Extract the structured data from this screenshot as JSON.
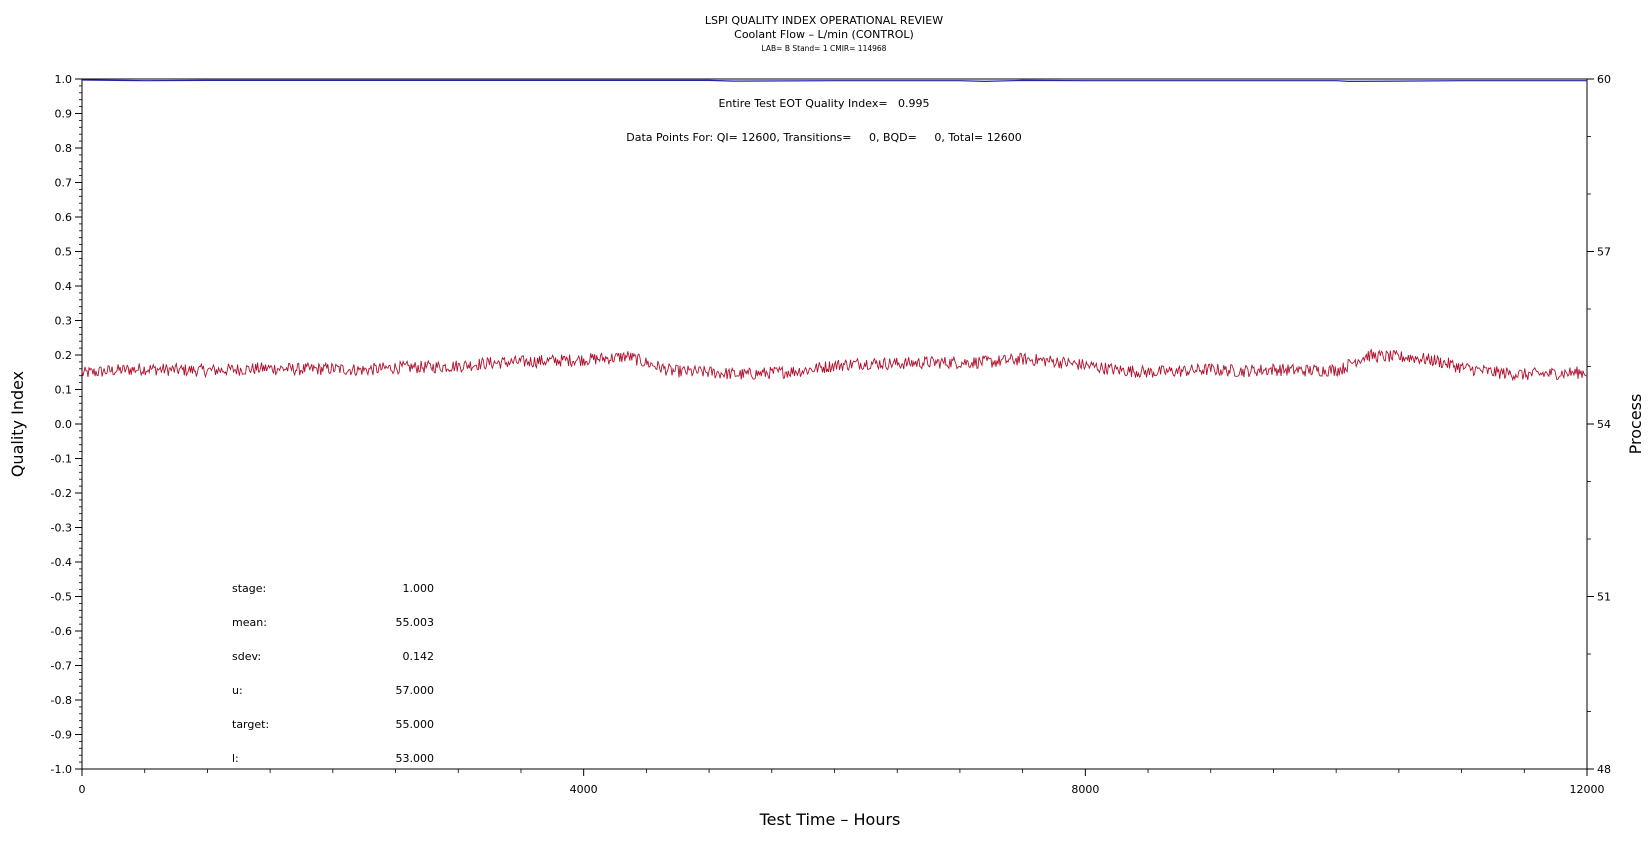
{
  "header": {
    "title": "LSPI QUALITY INDEX OPERATIONAL REVIEW",
    "subtitle": "Coolant Flow – L/min (CONTROL)",
    "info_line": "LAB= B Stand= 1 CMIR= 114968"
  },
  "annotations": {
    "qi_text": "Entire Test EOT Quality Index=   0.995",
    "datapoints_text": "Data Points For: QI= 12600, Transitions=     0, BQD=     0, Total= 12600"
  },
  "stats": [
    {
      "label": "stage:",
      "value": "1.000"
    },
    {
      "label": "mean:",
      "value": "55.003"
    },
    {
      "label": "sdev:",
      "value": "0.142"
    },
    {
      "label": "u:",
      "value": "57.000"
    },
    {
      "label": "target:",
      "value": "55.000"
    },
    {
      "label": "l:",
      "value": "53.000"
    }
  ],
  "chart_data": {
    "type": "line",
    "xlabel": "Test Time – Hours",
    "ylabel": "Quality Index",
    "y2label": "Process",
    "xlim": [
      0,
      12000
    ],
    "ylim": [
      -1.0,
      1.0
    ],
    "y2lim": [
      48,
      60
    ],
    "x_ticks": [
      0,
      4000,
      8000,
      12000
    ],
    "y_ticks": [
      1.0,
      0.9,
      0.8,
      0.7,
      0.6,
      0.5,
      0.4,
      0.3,
      0.2,
      0.1,
      0.0,
      -0.1,
      -0.2,
      -0.3,
      -0.4,
      -0.5,
      -0.6,
      -0.7,
      -0.8,
      -0.9,
      -1.0
    ],
    "y_tick_labels": [
      "1.0",
      "0.9",
      "0.8",
      "0.7",
      "0.6",
      "0.5",
      "0.4",
      "0.3",
      "0.2",
      "0.1",
      "0.0",
      "-0.1",
      "-0.2",
      "-0.3",
      "-0.4",
      "-0.5",
      "-0.6",
      "-0.7",
      "-0.8",
      "-0.9",
      "-1.0"
    ],
    "y2_ticks": [
      60,
      57,
      54,
      51,
      48
    ],
    "grid": false,
    "series": [
      {
        "axis": "left",
        "color": "#2222aa",
        "x": [
          0,
          500,
          1000,
          2000,
          3000,
          4000,
          5000,
          5200,
          6000,
          7000,
          7200,
          7500,
          8000,
          9000,
          10000,
          10100,
          11000,
          12000
        ],
        "values": [
          0.997,
          0.995,
          0.996,
          0.996,
          0.996,
          0.996,
          0.996,
          0.994,
          0.995,
          0.995,
          0.993,
          0.996,
          0.995,
          0.995,
          0.995,
          0.993,
          0.995,
          0.995
        ]
      },
      {
        "axis": "right",
        "color": "#b0122e",
        "x": [
          0,
          250,
          500,
          750,
          1000,
          1250,
          1500,
          1750,
          2000,
          2250,
          2500,
          2750,
          3000,
          3250,
          3500,
          3750,
          4000,
          4250,
          4350,
          4450,
          4700,
          5000,
          5250,
          5500,
          5750,
          6000,
          6250,
          6500,
          6750,
          7000,
          7250,
          7500,
          7750,
          8000,
          8250,
          8500,
          8750,
          9000,
          9250,
          9500,
          9750,
          10000,
          10050,
          10150,
          10250,
          10400,
          10600,
          10800,
          11000,
          11250,
          11500,
          11750,
          12000
        ],
        "values": [
          54.88,
          54.93,
          54.96,
          54.94,
          54.93,
          54.95,
          54.97,
          54.95,
          54.96,
          54.94,
          54.98,
          54.99,
          55.01,
          55.06,
          55.08,
          55.1,
          55.12,
          55.15,
          55.18,
          55.1,
          54.92,
          54.9,
          54.86,
          54.89,
          54.93,
          55.02,
          55.06,
          55.05,
          55.07,
          55.07,
          55.08,
          55.13,
          55.09,
          55.02,
          54.94,
          54.9,
          54.92,
          54.95,
          54.92,
          54.95,
          54.93,
          54.94,
          54.96,
          55.1,
          55.19,
          55.17,
          55.16,
          55.1,
          54.98,
          54.9,
          54.86,
          54.88,
          54.9
        ]
      }
    ]
  }
}
